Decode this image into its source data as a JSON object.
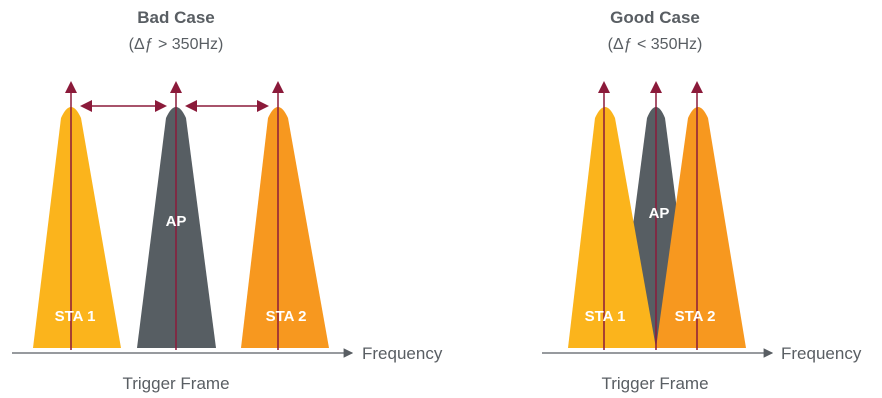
{
  "left_panel": {
    "title": "Bad Case",
    "condition": "(Δƒ > 350Hz)",
    "axis_label": "Frequency",
    "caption": "Trigger Frame",
    "labels": {
      "sta1": "STA 1",
      "ap": "AP",
      "sta2": "STA 2"
    }
  },
  "right_panel": {
    "title": "Good Case",
    "condition": "(Δƒ < 350Hz)",
    "axis_label": "Frequency",
    "caption": "Trigger Frame",
    "labels": {
      "sta1": "STA 1",
      "ap": "AP",
      "sta2": "STA 2"
    }
  },
  "colors": {
    "sta1": "#fbb41c",
    "ap": "#575e63",
    "sta2": "#f7981f",
    "marker": "#8b1a3a",
    "axis": "#595e63"
  }
}
